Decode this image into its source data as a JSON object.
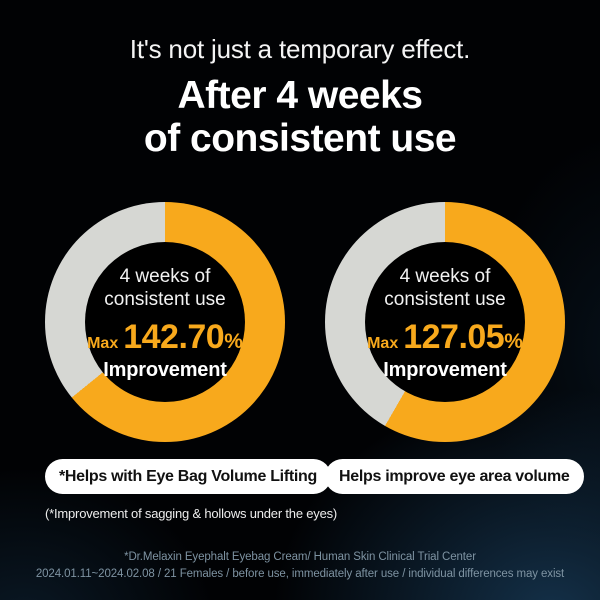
{
  "header": {
    "tagline": "It's not just a temporary effect.",
    "heading_line1": "After 4 weeks",
    "heading_line2": "of consistent use"
  },
  "colors": {
    "accent_yellow": "#F8A91C",
    "ring_gray": "#D6D7D3",
    "donut_hole": "#000000",
    "pill_bg": "#FFFFFF",
    "pill_text": "#111111",
    "footer_text": "#7E93A2",
    "background": "#010204",
    "glow_blue": "#173854"
  },
  "chart_data": [
    {
      "type": "pie",
      "variant": "donut",
      "title": "4 weeks of consistent use",
      "center_label_line1": "4 weeks of",
      "center_label_line2": "consistent use",
      "metric_prefix": "Max",
      "metric_value": "142.70",
      "metric_unit": "%",
      "metric_label": "Improvement",
      "start_angle": "12 o'clock",
      "direction": "clockwise",
      "slices": [
        {
          "name": "improvement",
          "percent": 64.2,
          "sweep_deg": 231,
          "color": "#F8A91C"
        },
        {
          "name": "remainder",
          "percent": 35.8,
          "sweep_deg": 129,
          "color": "#D6D7D3"
        }
      ],
      "pill_label": "*Helps with Eye Bag Volume Lifting",
      "footnote": "(*Improvement of sagging & hollows under the eyes)"
    },
    {
      "type": "pie",
      "variant": "donut",
      "title": "4 weeks of consistent use",
      "center_label_line1": "4 weeks of",
      "center_label_line2": "consistent use",
      "metric_prefix": "Max",
      "metric_value": "127.05",
      "metric_unit": "%",
      "metric_label": "Improvement",
      "start_angle": "12 o'clock",
      "direction": "clockwise",
      "slices": [
        {
          "name": "improvement",
          "percent": 58.3,
          "sweep_deg": 210,
          "color": "#F8A91C"
        },
        {
          "name": "remainder",
          "percent": 41.7,
          "sweep_deg": 150,
          "color": "#D6D7D3"
        }
      ],
      "pill_label": "Helps improve eye area volume",
      "footnote": ""
    }
  ],
  "footer": {
    "line1": "*Dr.Melaxin Eyephalt Eyebag Cream/ Human Skin Clinical Trial Center",
    "line2": "2024.01.11~2024.02.08 / 21 Females / before use, immediately after use / individual differences may exist"
  }
}
